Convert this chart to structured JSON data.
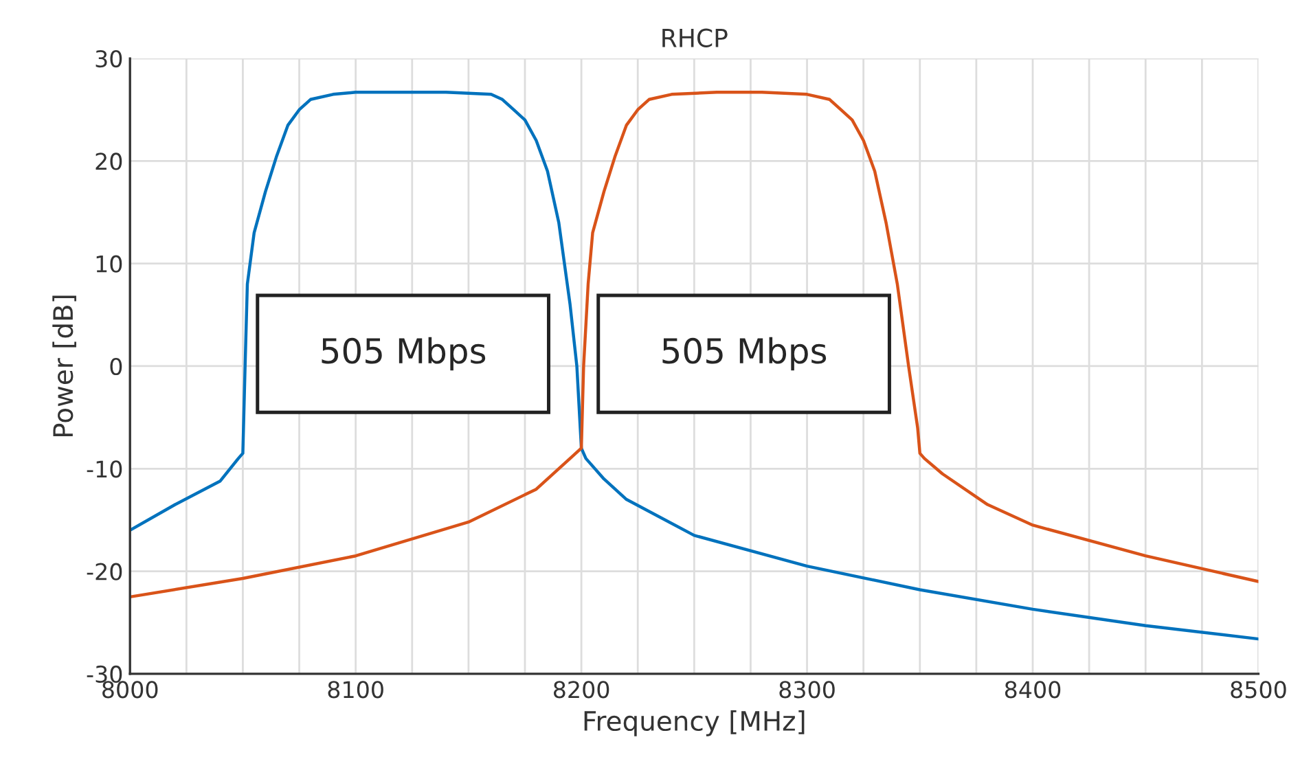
{
  "chart_data": {
    "type": "line",
    "title": "RHCP",
    "xlabel": "Frequency [MHz]",
    "ylabel": "Power [dB]",
    "xlim": [
      8000,
      8500
    ],
    "ylim": [
      -30,
      30
    ],
    "xticks": [
      8000,
      {
        "value": 8025,
        "label": null
      },
      {
        "value": 8050,
        "label": null
      },
      {
        "value": 8075,
        "label": null
      },
      8100,
      {
        "value": 8125,
        "label": null
      },
      {
        "value": 8150,
        "label": null
      },
      {
        "value": 8175,
        "label": null
      },
      8200,
      {
        "value": 8225,
        "label": null
      },
      {
        "value": 8250,
        "label": null
      },
      {
        "value": 8275,
        "label": null
      },
      8300,
      {
        "value": 8325,
        "label": null
      },
      {
        "value": 8350,
        "label": null
      },
      {
        "value": 8375,
        "label": null
      },
      8400,
      {
        "value": 8425,
        "label": null
      },
      {
        "value": 8450,
        "label": null
      },
      {
        "value": 8475,
        "label": null
      },
      8500
    ],
    "yticks": [
      -30,
      -20,
      -10,
      0,
      10,
      20,
      30
    ],
    "grid": true,
    "line_style": "solid",
    "marker": "none",
    "series": [
      {
        "color": "#0072bd",
        "x": [
          8000,
          8020,
          8040,
          8048,
          8050,
          8051,
          8052,
          8055,
          8060,
          8065,
          8070,
          8075,
          8080,
          8090,
          8100,
          8120,
          8140,
          8160,
          8165,
          8170,
          8175,
          8180,
          8185,
          8190,
          8195,
          8198,
          8200,
          8202,
          8210,
          8220,
          8250,
          8300,
          8350,
          8400,
          8450,
          8500
        ],
        "values": [
          -16,
          -13.5,
          -11.2,
          -9,
          -8.5,
          0,
          8,
          13,
          17,
          20.5,
          23.5,
          25,
          26,
          26.5,
          26.7,
          26.7,
          26.7,
          26.5,
          26,
          25,
          24,
          22,
          19,
          14,
          6,
          0,
          -8,
          -9,
          -11,
          -13,
          -16.5,
          -19.5,
          -21.8,
          -23.7,
          -25.3,
          -26.6
        ]
      },
      {
        "color": "#d95319",
        "x": [
          8000,
          8050,
          8100,
          8150,
          8180,
          8195,
          8200,
          8201,
          8203,
          8205,
          8210,
          8215,
          8220,
          8225,
          8230,
          8240,
          8260,
          8280,
          8300,
          8310,
          8315,
          8320,
          8325,
          8330,
          8335,
          8340,
          8345,
          8349,
          8350,
          8352,
          8360,
          8380,
          8400,
          8450,
          8500
        ],
        "values": [
          -22.5,
          -20.7,
          -18.5,
          -15.2,
          -12,
          -9,
          -8,
          0,
          8,
          13,
          17,
          20.5,
          23.5,
          25,
          26,
          26.5,
          26.7,
          26.7,
          26.5,
          26,
          25,
          24,
          22,
          19,
          14,
          8,
          0,
          -6,
          -8.5,
          -9,
          -10.5,
          -13.5,
          -15.5,
          -18.5,
          -21
        ]
      }
    ],
    "annotations": [
      "505 Mbps",
      "505 Mbps"
    ]
  }
}
